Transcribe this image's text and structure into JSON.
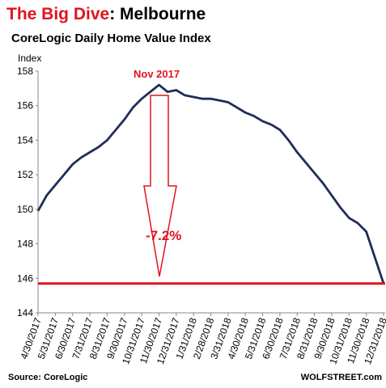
{
  "chart_data": {
    "type": "line",
    "title": "The Big Dive",
    "title_rest": ": Melbourne",
    "subtitle": "CoreLogic Daily Home Value Index",
    "y_label": "Index",
    "categories": [
      "4/30/2017",
      null,
      "5/31/2017",
      null,
      "6/30/2017",
      null,
      "7/31/2017",
      null,
      "8/31/2017",
      null,
      "9/30/2017",
      null,
      "10/31/2017",
      null,
      "11/30/2017",
      null,
      "12/31/2017",
      null,
      "1/31/2018",
      null,
      "2/28/2018",
      null,
      "3/31/2018",
      null,
      "4/30/2018",
      null,
      "5/31/2018",
      null,
      "6/30/2018",
      null,
      "7/31/2018",
      null,
      "8/31/2018",
      null,
      "9/30/2018",
      null,
      "10/31/2018",
      null,
      "11/30/2018",
      null,
      "12/31/2018"
    ],
    "series": [
      {
        "name": "CoreLogic Daily Home Value Index",
        "color": "#1f2d5a",
        "values": [
          149.9,
          150.8,
          151.4,
          152.0,
          152.6,
          153.0,
          153.3,
          153.6,
          154.0,
          154.6,
          155.2,
          155.9,
          156.4,
          156.8,
          157.2,
          156.8,
          156.9,
          156.6,
          156.5,
          156.4,
          156.4,
          156.3,
          156.2,
          155.9,
          155.6,
          155.4,
          155.1,
          154.9,
          154.6,
          154.0,
          153.3,
          152.7,
          152.1,
          151.5,
          150.8,
          150.1,
          149.5,
          149.2,
          148.7,
          147.2,
          145.7
        ]
      }
    ],
    "ylim": [
      144,
      158
    ],
    "yticks": [
      144,
      146,
      148,
      150,
      152,
      154,
      156,
      158
    ],
    "reference_line": 145.7,
    "reference_color": "#e0141e",
    "annotations": [
      "Nov 2017",
      "-7.2%"
    ],
    "source": "Source: CoreLogic",
    "credit": "WOLFSTREET.com"
  }
}
